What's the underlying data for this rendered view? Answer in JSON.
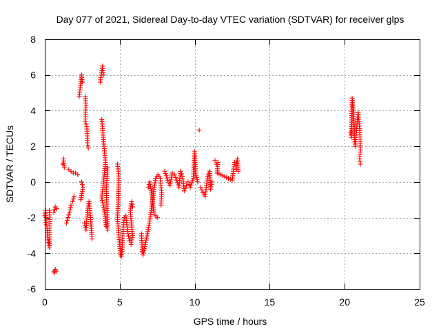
{
  "chart_data": {
    "type": "scatter",
    "title": "Day 077 of 2021, Sidereal Day-to-day VTEC variation (SDTVAR) for receiver glps",
    "xlabel": "GPS time / hours",
    "ylabel": "SDTVAR / TECUs",
    "xlim": [
      0,
      25
    ],
    "ylim": [
      -6,
      8
    ],
    "xticks": [
      0,
      5,
      10,
      15,
      20,
      25
    ],
    "yticks": [
      -6,
      -4,
      -2,
      0,
      2,
      4,
      6,
      8
    ],
    "grid": true,
    "marker": "plus",
    "color": "#ff0000",
    "series": [
      {
        "name": "SDTVAR",
        "segments": [
          [
            [
              0.0,
              -1.9
            ],
            [
              0.05,
              -1.6
            ],
            [
              0.1,
              -2.4
            ],
            [
              0.15,
              -2.6
            ],
            [
              0.2,
              -3.1
            ],
            [
              0.25,
              -3.4
            ],
            [
              0.3,
              -3.7
            ],
            [
              0.35,
              -2.1
            ],
            [
              0.3,
              -1.6
            ]
          ],
          [
            [
              0.6,
              -5.0
            ],
            [
              0.65,
              -5.1
            ],
            [
              0.7,
              -4.9
            ],
            [
              0.75,
              -5.0
            ],
            [
              0.6,
              -1.7
            ],
            [
              0.7,
              -1.4
            ],
            [
              0.8,
              -1.5
            ]
          ],
          [
            [
              1.2,
              1.0
            ],
            [
              1.3,
              0.8
            ],
            [
              1.25,
              1.3
            ],
            [
              1.45,
              -2.3
            ],
            [
              1.55,
              -2.0
            ],
            [
              1.65,
              -1.7
            ],
            [
              1.75,
              -1.3
            ],
            [
              1.85,
              -1.1
            ],
            [
              1.95,
              -0.8
            ]
          ],
          [
            [
              1.6,
              0.7
            ],
            [
              1.75,
              0.6
            ],
            [
              1.9,
              0.5
            ],
            [
              2.05,
              0.5
            ],
            [
              2.2,
              0.4
            ],
            [
              2.3,
              4.8
            ],
            [
              2.45,
              6.0
            ],
            [
              2.5,
              5.6
            ],
            [
              2.45,
              0.0
            ],
            [
              2.55,
              -0.3
            ],
            [
              2.4,
              -1.0
            ]
          ],
          [
            [
              2.7,
              4.8
            ],
            [
              2.75,
              4.3
            ],
            [
              2.7,
              3.4
            ],
            [
              2.8,
              3.1
            ],
            [
              2.85,
              2.2
            ],
            [
              2.9,
              1.9
            ],
            [
              2.65,
              -2.3
            ],
            [
              2.75,
              -2.7
            ],
            [
              2.85,
              -1.6
            ],
            [
              2.95,
              -1.1
            ],
            [
              3.05,
              -2.0
            ],
            [
              3.15,
              -3.2
            ]
          ],
          [
            [
              3.7,
              5.6
            ],
            [
              3.85,
              6.5
            ],
            [
              3.9,
              6.0
            ],
            [
              3.8,
              3.5
            ],
            [
              3.95,
              2.0
            ],
            [
              4.05,
              1.1
            ],
            [
              3.8,
              -0.9
            ],
            [
              3.9,
              -1.3
            ],
            [
              4.0,
              -1.8
            ],
            [
              4.1,
              -2.5
            ],
            [
              4.2,
              -2.7
            ],
            [
              4.1,
              -0.4
            ],
            [
              4.2,
              0.8
            ]
          ],
          [
            [
              4.85,
              1.0
            ],
            [
              4.95,
              0.2
            ],
            [
              4.85,
              -2.1
            ],
            [
              4.95,
              -3.1
            ],
            [
              5.0,
              -3.5
            ],
            [
              5.05,
              -4.1
            ],
            [
              5.1,
              -4.2
            ],
            [
              5.15,
              -3.9
            ],
            [
              5.25,
              -2.4
            ],
            [
              5.3,
              -2.0
            ]
          ],
          [
            [
              5.4,
              -1.9
            ],
            [
              5.55,
              -2.9
            ],
            [
              5.65,
              -3.3
            ],
            [
              5.75,
              -3.5
            ],
            [
              5.85,
              -3.0
            ],
            [
              5.7,
              -1.6
            ],
            [
              5.8,
              -1.1
            ],
            [
              5.85,
              -1.4
            ]
          ],
          [
            [
              6.45,
              -2.9
            ],
            [
              6.5,
              -3.9
            ],
            [
              6.55,
              -4.1
            ],
            [
              6.7,
              -3.5
            ],
            [
              6.85,
              -2.9
            ],
            [
              7.0,
              -2.2
            ],
            [
              7.1,
              -1.6
            ],
            [
              7.2,
              -1.0
            ],
            [
              7.3,
              -0.3
            ],
            [
              7.4,
              0.2
            ],
            [
              7.55,
              0.4
            ],
            [
              7.7,
              0.2
            ],
            [
              7.8,
              -0.6
            ],
            [
              7.75,
              -1.3
            ]
          ],
          [
            [
              6.9,
              -0.3
            ],
            [
              7.0,
              0.0
            ],
            [
              7.1,
              -0.5
            ],
            [
              7.2,
              -1.2
            ],
            [
              7.3,
              -1.8
            ],
            [
              7.5,
              -2.0
            ]
          ],
          [
            [
              8.0,
              0.6
            ],
            [
              8.2,
              0.1
            ],
            [
              8.35,
              -0.2
            ],
            [
              8.5,
              0.5
            ],
            [
              8.65,
              0.4
            ],
            [
              8.8,
              0.1
            ],
            [
              8.95,
              -0.3
            ],
            [
              9.05,
              0.6
            ],
            [
              9.2,
              0.3
            ],
            [
              9.3,
              -0.5
            ],
            [
              9.45,
              -0.2
            ],
            [
              9.55,
              0.0
            ],
            [
              9.7,
              -0.3
            ],
            [
              9.9,
              0.2
            ],
            [
              10.0,
              1.7
            ],
            [
              10.05,
              0.5
            ],
            [
              10.2,
              0.0
            ],
            [
              10.3,
              2.9
            ],
            [
              10.4,
              -0.3
            ],
            [
              10.55,
              -0.6
            ],
            [
              10.7,
              -0.8
            ],
            [
              10.85,
              0.3
            ],
            [
              11.0,
              0.6
            ],
            [
              11.05,
              -0.4
            ],
            [
              11.15,
              0.0
            ]
          ],
          [
            [
              11.35,
              1.2
            ],
            [
              11.45,
              1.0
            ],
            [
              11.55,
              1.1
            ],
            [
              11.5,
              0.5
            ],
            [
              12.5,
              0.1
            ],
            [
              12.65,
              1.1
            ],
            [
              12.75,
              0.9
            ],
            [
              12.85,
              1.3
            ],
            [
              12.9,
              0.6
            ],
            [
              12.8,
              0.7
            ]
          ],
          [
            [
              20.4,
              2.8
            ],
            [
              20.45,
              2.5
            ],
            [
              20.5,
              4.7
            ],
            [
              20.55,
              4.3
            ],
            [
              20.6,
              3.9
            ],
            [
              20.65,
              2.5
            ],
            [
              20.7,
              2.0
            ],
            [
              20.85,
              3.5
            ],
            [
              20.9,
              3.9
            ],
            [
              21.0,
              3.0
            ],
            [
              21.05,
              1.8
            ],
            [
              21.0,
              1.3
            ],
            [
              21.05,
              1.0
            ]
          ]
        ]
      }
    ]
  }
}
